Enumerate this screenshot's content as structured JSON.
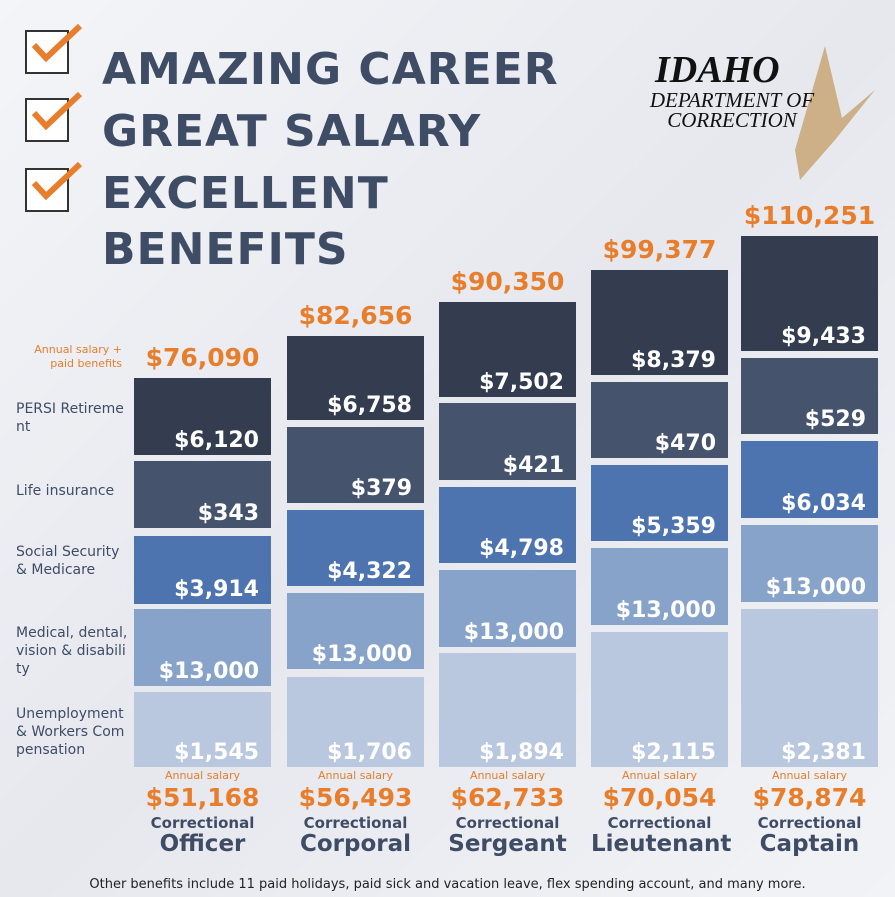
{
  "headline": [
    "AMAZING CAREER",
    "GREAT SALARY",
    "EXCELLENT BENEFITS"
  ],
  "logo": {
    "title": "IDAHO",
    "subtitle": "DEPARTMENT OF CORRECTION"
  },
  "total_note": "Annual salary + paid benefits",
  "row_labels": [
    "PERSI Retirement",
    "Life insurance",
    "Social Security & Medicare",
    "Medical, dental, vision & disability",
    "Unemployment & Workers Compensation"
  ],
  "columns": [
    {
      "total": "$76,090",
      "segments": [
        "$6,120",
        "$343",
        "$3,914",
        "$13,000",
        "$1,545"
      ],
      "salary_note": "Annual salary",
      "salary": "$51,168",
      "prefix": "Correctional",
      "rank": "Officer"
    },
    {
      "total": "$82,656",
      "segments": [
        "$6,758",
        "$379",
        "$4,322",
        "$13,000",
        "$1,706"
      ],
      "salary_note": "Annual salary",
      "salary": "$56,493",
      "prefix": "Correctional",
      "rank": "Corporal"
    },
    {
      "total": "$90,350",
      "segments": [
        "$7,502",
        "$421",
        "$4,798",
        "$13,000",
        "$1,894"
      ],
      "salary_note": "Annual salary",
      "salary": "$62,733",
      "prefix": "Correctional",
      "rank": "Sergeant"
    },
    {
      "total": "$99,377",
      "segments": [
        "$8,379",
        "$470",
        "$5,359",
        "$13,000",
        "$2,115"
      ],
      "salary_note": "Annual salary",
      "salary": "$70,054",
      "prefix": "Correctional",
      "rank": "Lieutenant"
    },
    {
      "total": "$110,251",
      "segments": [
        "$9,433",
        "$529",
        "$6,034",
        "$13,000",
        "$2,381"
      ],
      "salary_note": "Annual salary",
      "salary": "$78,874",
      "prefix": "Correctional",
      "rank": "Captain"
    }
  ],
  "footer": "Other benefits include 11 paid holidays, paid sick and vacation leave, flex spending account, and many more."
}
